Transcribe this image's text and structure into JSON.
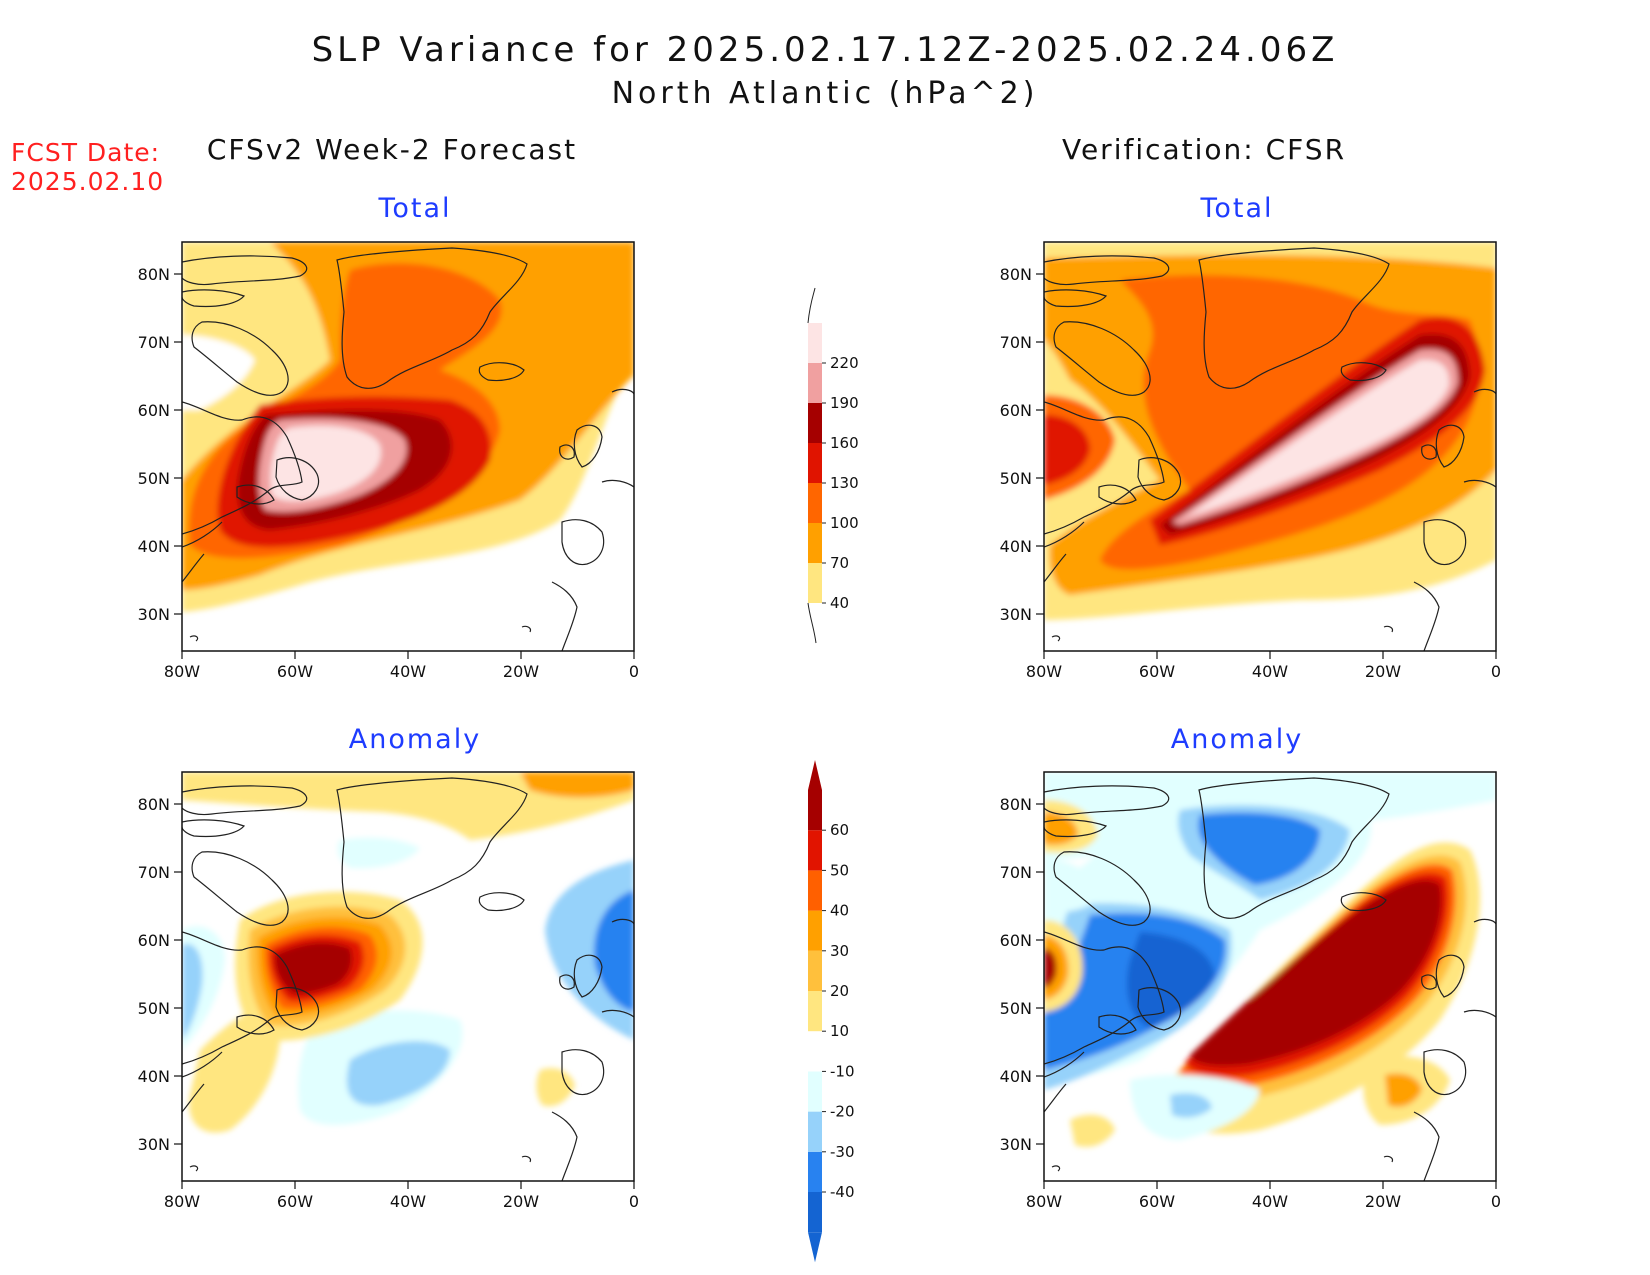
{
  "title": {
    "line1": "SLP Variance for 2025.02.17.12Z-2025.02.24.06Z",
    "line2": "North Atlantic (hPa^2)"
  },
  "forecast_date": {
    "label": "FCST Date:",
    "value": "2025.02.10"
  },
  "columns": {
    "left": "CFSv2 Week-2 Forecast",
    "right": "Verification: CFSR"
  },
  "panels": {
    "top_left": "Total",
    "top_right": "Total",
    "bottom_left": "Anomaly",
    "bottom_right": "Anomaly"
  },
  "axes": {
    "lat_ticks": [
      "30N",
      "40N",
      "50N",
      "60N",
      "70N",
      "80N"
    ],
    "lon_ticks": [
      "80W",
      "60W",
      "40W",
      "20W",
      "0"
    ]
  },
  "colorbars": {
    "total": {
      "labels": [
        "40",
        "70",
        "100",
        "130",
        "160",
        "190",
        "220"
      ],
      "colors": [
        "#ffe680",
        "#ffa000",
        "#ff6600",
        "#e01400",
        "#a50000",
        "#f0a0a0",
        "#fde4e4"
      ]
    },
    "anomaly": {
      "labels": [
        "-40",
        "-30",
        "-20",
        "-10",
        "10",
        "20",
        "30",
        "40",
        "50",
        "60"
      ],
      "colors": [
        "#1464d2",
        "#2882f0",
        "#96d2fa",
        "#e1ffff",
        "#ffffff",
        "#ffe680",
        "#ffc03c",
        "#ffa000",
        "#ff6000",
        "#e11400",
        "#a50000"
      ]
    }
  },
  "colors": {
    "title": "#111111",
    "forecast_date": "#ff2020",
    "panel_heading": "#1e3cff"
  }
}
